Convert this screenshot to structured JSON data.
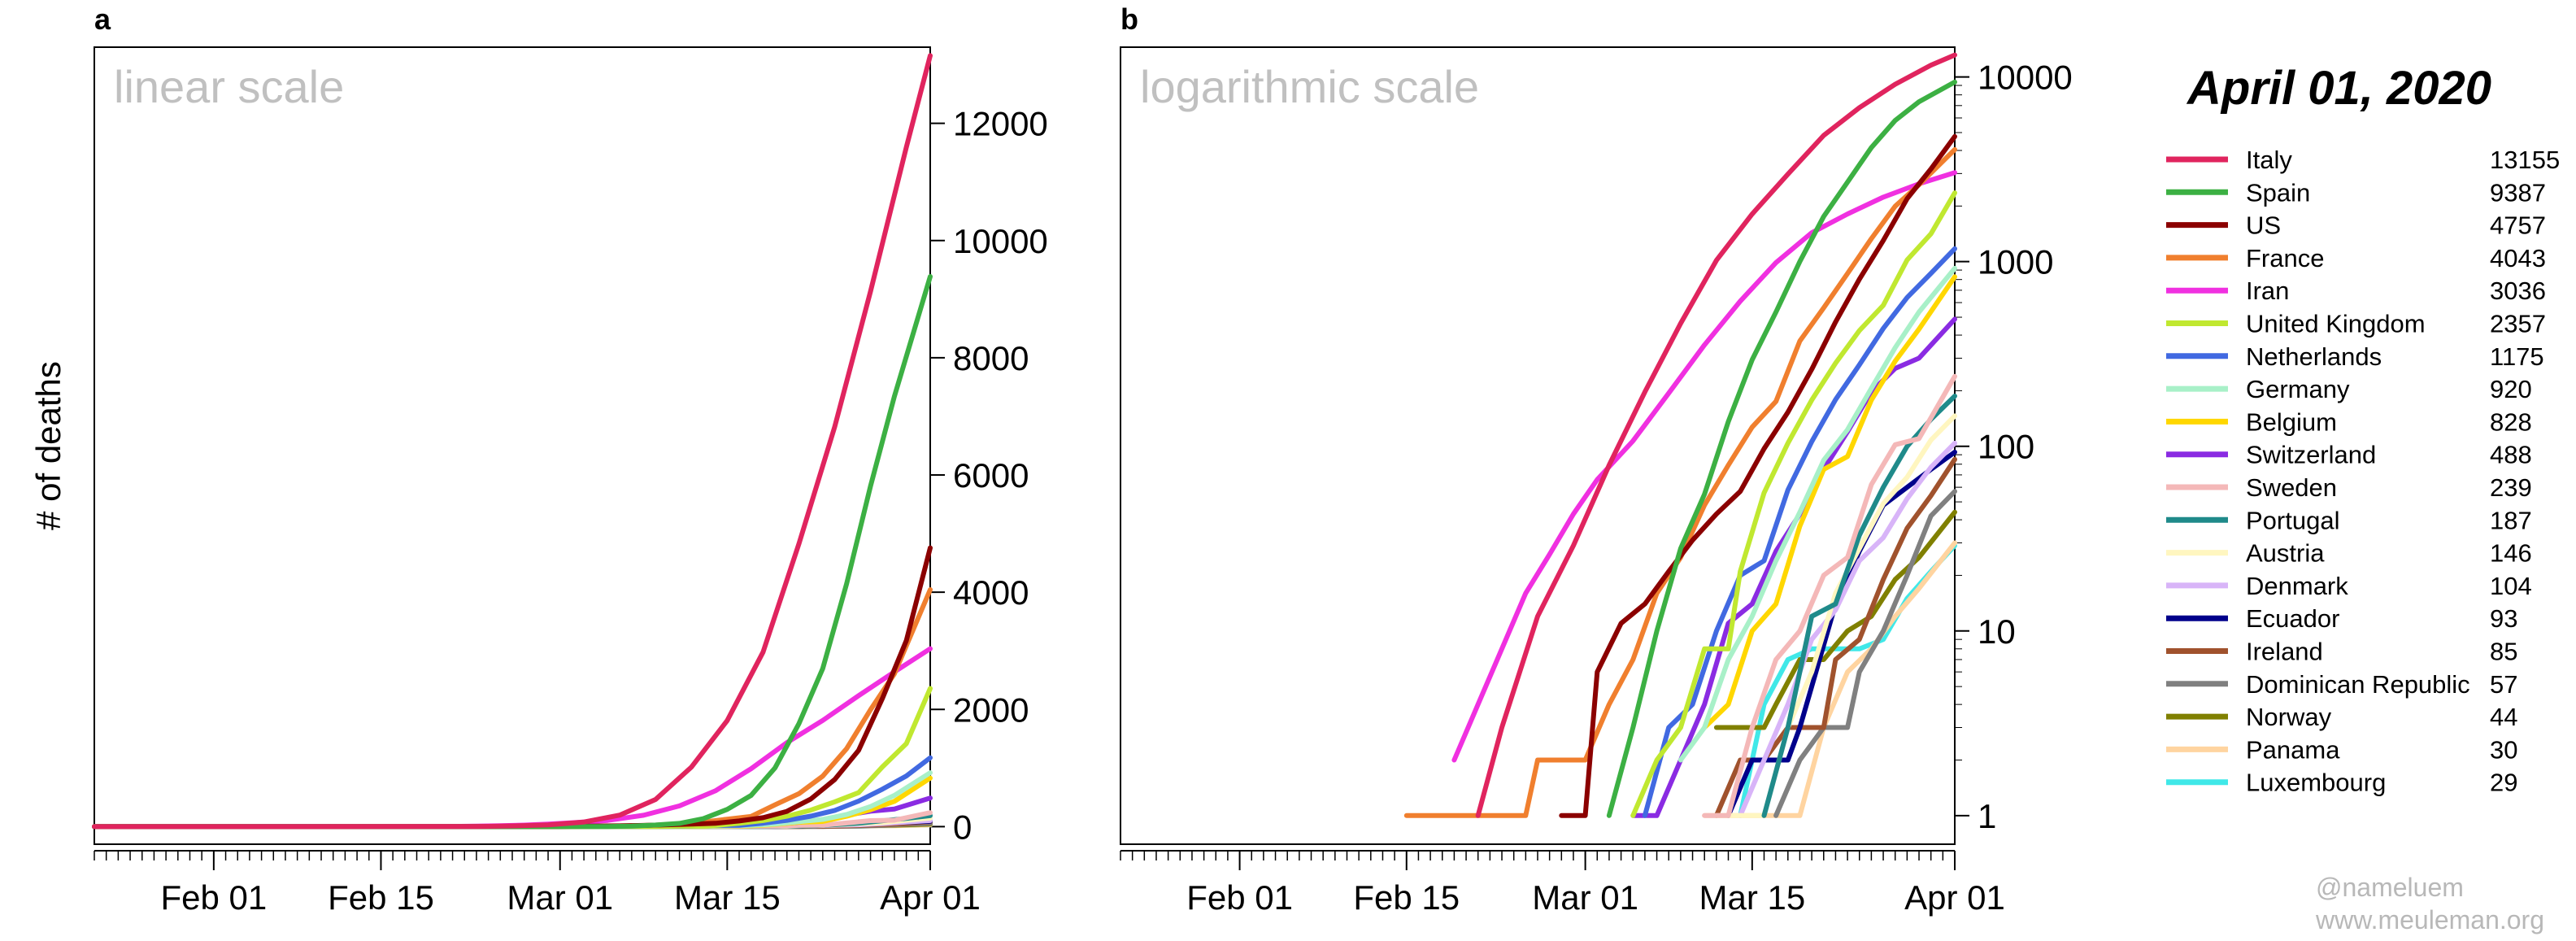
{
  "figure": {
    "date_title": "April 01, 2020",
    "y_axis_label": "# of deaths",
    "credit_handle": "@nameluem",
    "credit_site": "www.meuleman.org"
  },
  "chart_data": [
    {
      "id": "a",
      "panel_label": "a",
      "scale_label": "linear scale",
      "type": "line",
      "yscale": "linear",
      "ylim": [
        -300,
        13300
      ],
      "yticks": [
        0,
        2000,
        4000,
        6000,
        8000,
        10000,
        12000
      ],
      "ytick_labels": [
        "0",
        "2000",
        "4000",
        "6000",
        "8000",
        "10000",
        "12000"
      ],
      "xlim": [
        "2020-01-22",
        "2020-04-01"
      ],
      "xticks": [
        "2020-02-01",
        "2020-02-15",
        "2020-03-01",
        "2020-03-15",
        "2020-04-01"
      ],
      "xtick_labels": [
        "Feb 01",
        "Feb 15",
        "Mar 01",
        "Mar 15",
        "Apr 01"
      ]
    },
    {
      "id": "b",
      "panel_label": "b",
      "scale_label": "logarithmic scale",
      "type": "line",
      "yscale": "log",
      "ylim": [
        0.7,
        14500
      ],
      "yticks": [
        1,
        10,
        100,
        1000,
        10000
      ],
      "ytick_labels": [
        "1",
        "10",
        "100",
        "1000",
        "10000"
      ],
      "xlim": [
        "2020-01-22",
        "2020-04-01"
      ],
      "xticks": [
        "2020-02-01",
        "2020-02-15",
        "2020-03-01",
        "2020-03-15",
        "2020-04-01"
      ],
      "xtick_labels": [
        "Feb 01",
        "Feb 15",
        "Mar 01",
        "Mar 15",
        "Apr 01"
      ]
    }
  ],
  "series": [
    {
      "name": "Italy",
      "total": "13155",
      "color": "#e0245e",
      "points": [
        [
          "2020-02-21",
          1
        ],
        [
          "2020-02-23",
          3
        ],
        [
          "2020-02-26",
          12
        ],
        [
          "2020-02-29",
          29
        ],
        [
          "2020-03-03",
          79
        ],
        [
          "2020-03-06",
          197
        ],
        [
          "2020-03-09",
          463
        ],
        [
          "2020-03-12",
          1016
        ],
        [
          "2020-03-15",
          1809
        ],
        [
          "2020-03-18",
          2978
        ],
        [
          "2020-03-21",
          4825
        ],
        [
          "2020-03-24",
          6820
        ],
        [
          "2020-03-27",
          9134
        ],
        [
          "2020-03-30",
          11591
        ],
        [
          "2020-04-01",
          13155
        ]
      ]
    },
    {
      "name": "Spain",
      "total": "9387",
      "color": "#3cb043",
      "points": [
        [
          "2020-03-03",
          1
        ],
        [
          "2020-03-05",
          3
        ],
        [
          "2020-03-07",
          10
        ],
        [
          "2020-03-09",
          28
        ],
        [
          "2020-03-11",
          55
        ],
        [
          "2020-03-13",
          136
        ],
        [
          "2020-03-15",
          294
        ],
        [
          "2020-03-17",
          533
        ],
        [
          "2020-03-19",
          1002
        ],
        [
          "2020-03-21",
          1756
        ],
        [
          "2020-03-23",
          2696
        ],
        [
          "2020-03-25",
          4145
        ],
        [
          "2020-03-27",
          5812
        ],
        [
          "2020-03-29",
          7340
        ],
        [
          "2020-04-01",
          9387
        ]
      ]
    },
    {
      "name": "US",
      "total": "4757",
      "color": "#8b0000",
      "points": [
        [
          "2020-02-28",
          1
        ],
        [
          "2020-03-01",
          1
        ],
        [
          "2020-03-02",
          6
        ],
        [
          "2020-03-04",
          11
        ],
        [
          "2020-03-06",
          14
        ],
        [
          "2020-03-08",
          21
        ],
        [
          "2020-03-10",
          31
        ],
        [
          "2020-03-12",
          43
        ],
        [
          "2020-03-14",
          57
        ],
        [
          "2020-03-16",
          97
        ],
        [
          "2020-03-18",
          153
        ],
        [
          "2020-03-20",
          261
        ],
        [
          "2020-03-22",
          471
        ],
        [
          "2020-03-24",
          803
        ],
        [
          "2020-03-26",
          1301
        ],
        [
          "2020-03-28",
          2191
        ],
        [
          "2020-03-30",
          3173
        ],
        [
          "2020-04-01",
          4757
        ]
      ]
    },
    {
      "name": "France",
      "total": "4043",
      "color": "#f07f2e",
      "points": [
        [
          "2020-02-15",
          1
        ],
        [
          "2020-02-25",
          1
        ],
        [
          "2020-02-26",
          2
        ],
        [
          "2020-03-01",
          2
        ],
        [
          "2020-03-03",
          4
        ],
        [
          "2020-03-05",
          7
        ],
        [
          "2020-03-07",
          16
        ],
        [
          "2020-03-09",
          25
        ],
        [
          "2020-03-11",
          48
        ],
        [
          "2020-03-13",
          79
        ],
        [
          "2020-03-15",
          127
        ],
        [
          "2020-03-17",
          175
        ],
        [
          "2020-03-19",
          372
        ],
        [
          "2020-03-21",
          562
        ],
        [
          "2020-03-23",
          862
        ],
        [
          "2020-03-25",
          1331
        ],
        [
          "2020-03-27",
          1995
        ],
        [
          "2020-03-29",
          2606
        ],
        [
          "2020-04-01",
          4043
        ]
      ]
    },
    {
      "name": "Iran",
      "total": "3036",
      "color": "#f030e0",
      "points": [
        [
          "2020-02-19",
          2
        ],
        [
          "2020-02-21",
          4
        ],
        [
          "2020-02-23",
          8
        ],
        [
          "2020-02-25",
          16
        ],
        [
          "2020-02-27",
          26
        ],
        [
          "2020-02-29",
          43
        ],
        [
          "2020-03-02",
          66
        ],
        [
          "2020-03-05",
          107
        ],
        [
          "2020-03-08",
          194
        ],
        [
          "2020-03-11",
          354
        ],
        [
          "2020-03-14",
          611
        ],
        [
          "2020-03-17",
          988
        ],
        [
          "2020-03-20",
          1433
        ],
        [
          "2020-03-23",
          1812
        ],
        [
          "2020-03-26",
          2234
        ],
        [
          "2020-03-29",
          2640
        ],
        [
          "2020-04-01",
          3036
        ]
      ]
    },
    {
      "name": "United Kingdom",
      "total": "2357",
      "color": "#c0e830",
      "points": [
        [
          "2020-03-05",
          1
        ],
        [
          "2020-03-07",
          2
        ],
        [
          "2020-03-09",
          3
        ],
        [
          "2020-03-11",
          8
        ],
        [
          "2020-03-13",
          8
        ],
        [
          "2020-03-14",
          21
        ],
        [
          "2020-03-16",
          56
        ],
        [
          "2020-03-18",
          104
        ],
        [
          "2020-03-20",
          178
        ],
        [
          "2020-03-22",
          282
        ],
        [
          "2020-03-24",
          423
        ],
        [
          "2020-03-26",
          580
        ],
        [
          "2020-03-28",
          1021
        ],
        [
          "2020-03-30",
          1415
        ],
        [
          "2020-04-01",
          2357
        ]
      ]
    },
    {
      "name": "Netherlands",
      "total": "1175",
      "color": "#4169e1",
      "points": [
        [
          "2020-03-06",
          1
        ],
        [
          "2020-03-08",
          3
        ],
        [
          "2020-03-10",
          4
        ],
        [
          "2020-03-12",
          10
        ],
        [
          "2020-03-14",
          20
        ],
        [
          "2020-03-16",
          24
        ],
        [
          "2020-03-18",
          58
        ],
        [
          "2020-03-20",
          106
        ],
        [
          "2020-03-22",
          179
        ],
        [
          "2020-03-24",
          276
        ],
        [
          "2020-03-26",
          435
        ],
        [
          "2020-03-28",
          639
        ],
        [
          "2020-03-30",
          864
        ],
        [
          "2020-04-01",
          1175
        ]
      ]
    },
    {
      "name": "Germany",
      "total": "920",
      "color": "#a8f0c8",
      "points": [
        [
          "2020-03-09",
          2
        ],
        [
          "2020-03-11",
          3
        ],
        [
          "2020-03-13",
          7
        ],
        [
          "2020-03-15",
          12
        ],
        [
          "2020-03-17",
          24
        ],
        [
          "2020-03-19",
          44
        ],
        [
          "2020-03-21",
          84
        ],
        [
          "2020-03-23",
          123
        ],
        [
          "2020-03-25",
          206
        ],
        [
          "2020-03-27",
          342
        ],
        [
          "2020-03-29",
          533
        ],
        [
          "2020-04-01",
          920
        ]
      ]
    },
    {
      "name": "Belgium",
      "total": "828",
      "color": "#ffd700",
      "points": [
        [
          "2020-03-11",
          3
        ],
        [
          "2020-03-13",
          4
        ],
        [
          "2020-03-15",
          10
        ],
        [
          "2020-03-17",
          14
        ],
        [
          "2020-03-19",
          37
        ],
        [
          "2020-03-21",
          75
        ],
        [
          "2020-03-23",
          88
        ],
        [
          "2020-03-25",
          178
        ],
        [
          "2020-03-27",
          289
        ],
        [
          "2020-03-29",
          431
        ],
        [
          "2020-04-01",
          828
        ]
      ]
    },
    {
      "name": "Switzerland",
      "total": "488",
      "color": "#8a2be2",
      "points": [
        [
          "2020-03-05",
          1
        ],
        [
          "2020-03-07",
          1
        ],
        [
          "2020-03-09",
          2
        ],
        [
          "2020-03-11",
          4
        ],
        [
          "2020-03-13",
          11
        ],
        [
          "2020-03-15",
          14
        ],
        [
          "2020-03-17",
          27
        ],
        [
          "2020-03-19",
          43
        ],
        [
          "2020-03-21",
          75
        ],
        [
          "2020-03-23",
          120
        ],
        [
          "2020-03-25",
          197
        ],
        [
          "2020-03-27",
          264
        ],
        [
          "2020-03-29",
          300
        ],
        [
          "2020-04-01",
          488
        ]
      ]
    },
    {
      "name": "Sweden",
      "total": "239",
      "color": "#f4b8b8",
      "points": [
        [
          "2020-03-11",
          1
        ],
        [
          "2020-03-13",
          1
        ],
        [
          "2020-03-15",
          3
        ],
        [
          "2020-03-17",
          7
        ],
        [
          "2020-03-19",
          10
        ],
        [
          "2020-03-21",
          20
        ],
        [
          "2020-03-23",
          25
        ],
        [
          "2020-03-25",
          62
        ],
        [
          "2020-03-27",
          102
        ],
        [
          "2020-03-29",
          110
        ],
        [
          "2020-04-01",
          239
        ]
      ]
    },
    {
      "name": "Portugal",
      "total": "187",
      "color": "#1f8a8a",
      "points": [
        [
          "2020-03-16",
          1
        ],
        [
          "2020-03-18",
          3
        ],
        [
          "2020-03-20",
          12
        ],
        [
          "2020-03-22",
          14
        ],
        [
          "2020-03-24",
          33
        ],
        [
          "2020-03-26",
          60
        ],
        [
          "2020-03-28",
          100
        ],
        [
          "2020-03-30",
          140
        ],
        [
          "2020-04-01",
          187
        ]
      ]
    },
    {
      "name": "Austria",
      "total": "146",
      "color": "#fff6c0",
      "points": [
        [
          "2020-03-12",
          1
        ],
        [
          "2020-03-14",
          1
        ],
        [
          "2020-03-16",
          1
        ],
        [
          "2020-03-18",
          3
        ],
        [
          "2020-03-20",
          6
        ],
        [
          "2020-03-22",
          16
        ],
        [
          "2020-03-24",
          28
        ],
        [
          "2020-03-26",
          49
        ],
        [
          "2020-03-28",
          68
        ],
        [
          "2020-03-30",
          108
        ],
        [
          "2020-04-01",
          146
        ]
      ]
    },
    {
      "name": "Denmark",
      "total": "104",
      "color": "#d8b4f8",
      "points": [
        [
          "2020-03-14",
          1
        ],
        [
          "2020-03-16",
          2
        ],
        [
          "2020-03-18",
          4
        ],
        [
          "2020-03-20",
          9
        ],
        [
          "2020-03-22",
          13
        ],
        [
          "2020-03-24",
          24
        ],
        [
          "2020-03-26",
          32
        ],
        [
          "2020-03-28",
          52
        ],
        [
          "2020-03-30",
          77
        ],
        [
          "2020-04-01",
          104
        ]
      ]
    },
    {
      "name": "Ecuador",
      "total": "93",
      "color": "#00008b",
      "points": [
        [
          "2020-03-13",
          1
        ],
        [
          "2020-03-15",
          2
        ],
        [
          "2020-03-18",
          2
        ],
        [
          "2020-03-19",
          3
        ],
        [
          "2020-03-20",
          5
        ],
        [
          "2020-03-22",
          14
        ],
        [
          "2020-03-24",
          27
        ],
        [
          "2020-03-26",
          48
        ],
        [
          "2020-03-28",
          60
        ],
        [
          "2020-03-30",
          75
        ],
        [
          "2020-04-01",
          93
        ]
      ]
    },
    {
      "name": "Ireland",
      "total": "85",
      "color": "#a0522d",
      "points": [
        [
          "2020-03-12",
          1
        ],
        [
          "2020-03-14",
          2
        ],
        [
          "2020-03-16",
          2
        ],
        [
          "2020-03-18",
          3
        ],
        [
          "2020-03-20",
          3
        ],
        [
          "2020-03-21",
          3
        ],
        [
          "2020-03-22",
          7
        ],
        [
          "2020-03-24",
          9
        ],
        [
          "2020-03-26",
          19
        ],
        [
          "2020-03-28",
          36
        ],
        [
          "2020-03-30",
          54
        ],
        [
          "2020-04-01",
          85
        ]
      ]
    },
    {
      "name": "Dominican Republic",
      "total": "57",
      "color": "#808080",
      "points": [
        [
          "2020-03-17",
          1
        ],
        [
          "2020-03-19",
          2
        ],
        [
          "2020-03-21",
          3
        ],
        [
          "2020-03-23",
          3
        ],
        [
          "2020-03-24",
          6
        ],
        [
          "2020-03-26",
          10
        ],
        [
          "2020-03-28",
          20
        ],
        [
          "2020-03-30",
          42
        ],
        [
          "2020-04-01",
          57
        ]
      ]
    },
    {
      "name": "Norway",
      "total": "44",
      "color": "#808000",
      "points": [
        [
          "2020-03-12",
          3
        ],
        [
          "2020-03-16",
          3
        ],
        [
          "2020-03-17",
          4
        ],
        [
          "2020-03-19",
          7
        ],
        [
          "2020-03-21",
          7
        ],
        [
          "2020-03-23",
          10
        ],
        [
          "2020-03-25",
          12
        ],
        [
          "2020-03-27",
          19
        ],
        [
          "2020-03-29",
          25
        ],
        [
          "2020-04-01",
          44
        ]
      ]
    },
    {
      "name": "Panama",
      "total": "30",
      "color": "#ffd4a0",
      "points": [
        [
          "2020-03-11",
          1
        ],
        [
          "2020-03-13",
          1
        ],
        [
          "2020-03-15",
          1
        ],
        [
          "2020-03-17",
          1
        ],
        [
          "2020-03-19",
          1
        ],
        [
          "2020-03-21",
          3
        ],
        [
          "2020-03-23",
          6
        ],
        [
          "2020-03-25",
          8
        ],
        [
          "2020-03-27",
          12
        ],
        [
          "2020-03-29",
          17
        ],
        [
          "2020-04-01",
          30
        ]
      ]
    },
    {
      "name": "Luxembourg",
      "total": "29",
      "color": "#40e8e8",
      "points": [
        [
          "2020-03-14",
          1
        ],
        [
          "2020-03-16",
          4
        ],
        [
          "2020-03-18",
          7
        ],
        [
          "2020-03-20",
          8
        ],
        [
          "2020-03-22",
          8
        ],
        [
          "2020-03-24",
          8
        ],
        [
          "2020-03-26",
          9
        ],
        [
          "2020-03-28",
          15
        ],
        [
          "2020-03-30",
          21
        ],
        [
          "2020-04-01",
          29
        ]
      ]
    }
  ]
}
